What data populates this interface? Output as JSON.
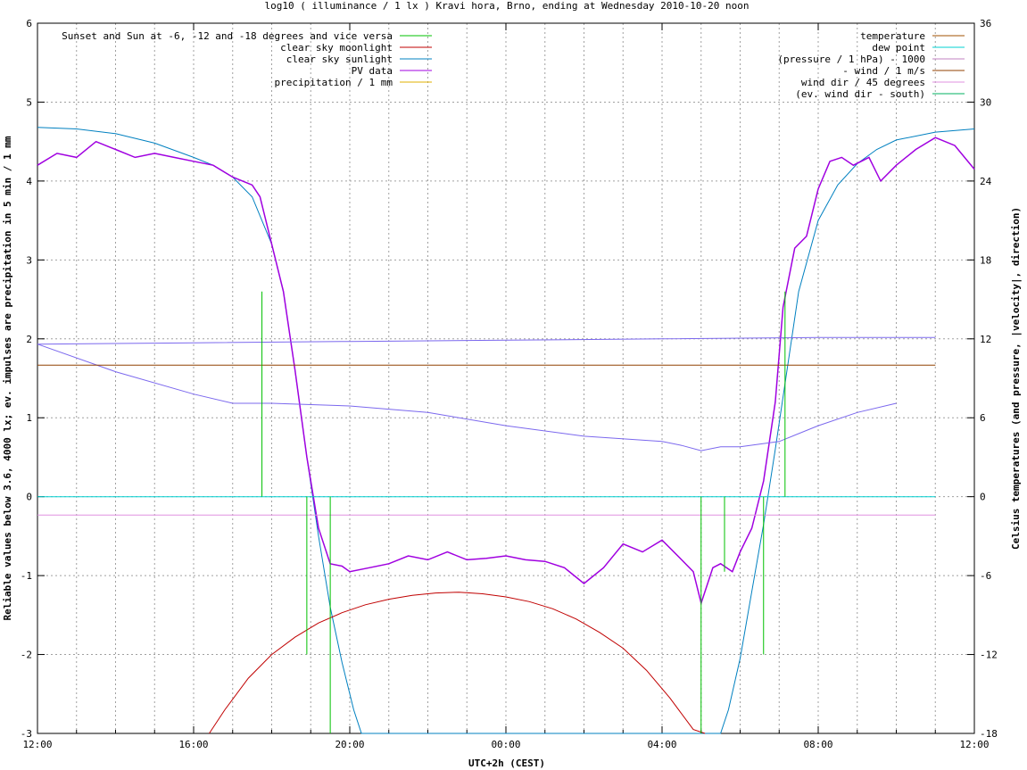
{
  "chart_data": {
    "type": "line",
    "title": "log10 ( illuminance / 1 lx ) Kravi hora, Brno, ending at Wednesday 2010-10-20 noon",
    "xlabel": "UTC+2h (CEST)",
    "ylabel": "Reliable values below 3.6, 4000 lx; ev. impulses are precipitation in 5 min / 1 mm",
    "y2label": "Celsius temperatures (and pressure, |velocity|, direction)",
    "xlim": [
      0,
      24
    ],
    "ylim": [
      -3,
      6
    ],
    "y2lim": [
      -18,
      36
    ],
    "grid": true,
    "x_ticks": [
      {
        "v": 0,
        "label": "12:00"
      },
      {
        "v": 4,
        "label": "16:00"
      },
      {
        "v": 8,
        "label": "20:00"
      },
      {
        "v": 12,
        "label": "00:00"
      },
      {
        "v": 16,
        "label": "04:00"
      },
      {
        "v": 20,
        "label": "08:00"
      },
      {
        "v": 24,
        "label": "12:00"
      }
    ],
    "y_ticks": [
      {
        "v": -3,
        "label": "-3"
      },
      {
        "v": -2,
        "label": "-2"
      },
      {
        "v": -1,
        "label": "-1"
      },
      {
        "v": 0,
        "label": "0"
      },
      {
        "v": 1,
        "label": "1"
      },
      {
        "v": 2,
        "label": "2"
      },
      {
        "v": 3,
        "label": "3"
      },
      {
        "v": 4,
        "label": "4"
      },
      {
        "v": 5,
        "label": "5"
      },
      {
        "v": 6,
        "label": "6"
      }
    ],
    "y2_ticks": [
      {
        "v": -18,
        "label": "-18"
      },
      {
        "v": -12,
        "label": "-12"
      },
      {
        "v": -6,
        "label": "-6"
      },
      {
        "v": 0,
        "label": "0"
      },
      {
        "v": 6,
        "label": "6"
      },
      {
        "v": 12,
        "label": "12"
      },
      {
        "v": 18,
        "label": "18"
      },
      {
        "v": 24,
        "label": "24"
      },
      {
        "v": 30,
        "label": "30"
      },
      {
        "v": 36,
        "label": "36"
      }
    ],
    "legend_left": [
      {
        "label": "Sunset and Sun at -6, -12 and -18 degrees and vice versa",
        "color": "#00c000"
      },
      {
        "label": "clear sky moonlight",
        "color": "#c00000"
      },
      {
        "label": "clear sky sunlight",
        "color": "#0080c0"
      },
      {
        "label": "PV data",
        "color": "#a000e0"
      },
      {
        "label": "precipitation / 1 mm",
        "color": "#e0b000"
      }
    ],
    "legend_right": [
      {
        "label": "temperature",
        "color": "#a05000"
      },
      {
        "label": "dew point",
        "color": "#00d0d0"
      },
      {
        "label": "(pressure / 1 hPa) - 1000",
        "color": "#c080c0"
      },
      {
        "label": "- wind / 1 m/s",
        "color": "#904000"
      },
      {
        "label": "wind dir / 45 degrees",
        "color": "#e090e0"
      },
      {
        "label": "(ev. wind dir - south)",
        "color": "#00b060"
      }
    ],
    "series": [
      {
        "name": "clear sky sunlight",
        "color": "#0080c0",
        "x": [
          0,
          1,
          2,
          3,
          4,
          4.5,
          5,
          5.5,
          6,
          6.3,
          6.6,
          6.9,
          7.2,
          7.5,
          7.8,
          8.1,
          8.3,
          17.5,
          17.7,
          18,
          18.3,
          18.6,
          18.9,
          19.2,
          19.5,
          20,
          20.5,
          21,
          21.5,
          22,
          23,
          24
        ],
        "y": [
          4.68,
          4.66,
          4.6,
          4.48,
          4.3,
          4.2,
          4.05,
          3.8,
          3.2,
          2.6,
          1.6,
          0.5,
          -0.5,
          -1.4,
          -2.1,
          -2.7,
          -3,
          -3,
          -2.7,
          -2.05,
          -1.2,
          -0.35,
          0.6,
          1.6,
          2.6,
          3.5,
          3.95,
          4.22,
          4.4,
          4.52,
          4.62,
          4.66
        ]
      },
      {
        "name": "clear sky moonlight",
        "color": "#c00000",
        "x": [
          4.4,
          4.8,
          5.4,
          6,
          6.6,
          7.2,
          7.8,
          8.4,
          9.0,
          9.6,
          10.2,
          10.8,
          11.4,
          12,
          12.6,
          13.2,
          13.8,
          14.4,
          15.0,
          15.6,
          16.2,
          16.8,
          17.1
        ],
        "y": [
          -3,
          -2.7,
          -2.3,
          -2.0,
          -1.78,
          -1.6,
          -1.47,
          -1.37,
          -1.3,
          -1.25,
          -1.22,
          -1.21,
          -1.23,
          -1.27,
          -1.33,
          -1.42,
          -1.55,
          -1.72,
          -1.92,
          -2.2,
          -2.55,
          -2.95,
          -3.1
        ]
      },
      {
        "name": "PV data",
        "color": "#a000e0",
        "x": [
          0,
          0.5,
          1,
          1.5,
          2,
          2.5,
          3,
          3.5,
          4,
          4.5,
          5,
          5.5,
          5.7,
          6,
          6.3,
          6.6,
          6.9,
          7.2,
          7.5,
          7.8,
          8,
          8.5,
          9,
          9.5,
          10,
          10.5,
          11,
          11.5,
          12,
          12.5,
          13,
          13.5,
          14,
          14.5,
          15,
          15.5,
          16,
          16.5,
          16.8,
          17,
          17.3,
          17.5,
          17.8,
          18,
          18.3,
          18.6,
          18.9,
          19.1,
          19.4,
          19.7,
          20,
          20.3,
          20.6,
          20.9,
          21.3,
          21.6,
          22,
          22.5,
          23,
          23.5,
          24
        ],
        "y": [
          4.2,
          4.35,
          4.3,
          4.5,
          4.4,
          4.3,
          4.35,
          4.3,
          4.25,
          4.2,
          4.05,
          3.95,
          3.8,
          3.2,
          2.6,
          1.6,
          0.5,
          -0.4,
          -0.85,
          -0.88,
          -0.95,
          -0.9,
          -0.85,
          -0.75,
          -0.8,
          -0.7,
          -0.8,
          -0.78,
          -0.75,
          -0.8,
          -0.82,
          -0.9,
          -1.1,
          -0.9,
          -0.6,
          -0.7,
          -0.55,
          -0.8,
          -0.95,
          -1.35,
          -0.9,
          -0.85,
          -0.95,
          -0.7,
          -0.4,
          0.2,
          1.2,
          2.4,
          3.15,
          3.3,
          3.9,
          4.25,
          4.3,
          4.2,
          4.3,
          4.0,
          4.2,
          4.4,
          4.55,
          4.45,
          4.15
        ]
      },
      {
        "name": "temperature",
        "color": "#7b68ee",
        "y_axis": "y2",
        "x": [
          0,
          2,
          4,
          5,
          6,
          8,
          10,
          12,
          14,
          16,
          16.5,
          17,
          17.5,
          18,
          19,
          20,
          21,
          22
        ],
        "y": [
          11.6,
          9.5,
          7.8,
          7.1,
          7.1,
          6.9,
          6.4,
          5.4,
          4.6,
          4.2,
          3.9,
          3.5,
          3.8,
          3.8,
          4.2,
          5.4,
          6.4,
          7.1
        ]
      },
      {
        "name": "(pressure / 1 hPa) - 1000",
        "color": "#7b68ee",
        "y_axis": "y2",
        "x": [
          0,
          4,
          8,
          12,
          16,
          20,
          23
        ],
        "y": [
          11.6,
          11.7,
          11.8,
          11.9,
          12.0,
          12.1,
          12.1
        ]
      },
      {
        "name": "- wind / 1 m/s",
        "color": "#904000",
        "y_axis": "y2",
        "x": [
          0,
          23
        ],
        "y": [
          10.0,
          10.0
        ]
      },
      {
        "name": "dew point",
        "color": "#00d0d0",
        "y_axis": "y2",
        "x": [
          0,
          23
        ],
        "y": [
          0,
          0
        ]
      },
      {
        "name": "wind dir / 45 degrees",
        "color": "#e090e0",
        "y_axis": "y2",
        "x": [
          0,
          23
        ],
        "y": [
          -1.4,
          -1.4
        ]
      }
    ],
    "impulses": {
      "color": "#00c000",
      "x": [
        5.75,
        6.9,
        7.5,
        17.0,
        17.6,
        18.6,
        19.15
      ],
      "y": [
        2.6,
        -2.0,
        -3,
        -3,
        -0.95,
        -2.0,
        2.6
      ]
    }
  }
}
